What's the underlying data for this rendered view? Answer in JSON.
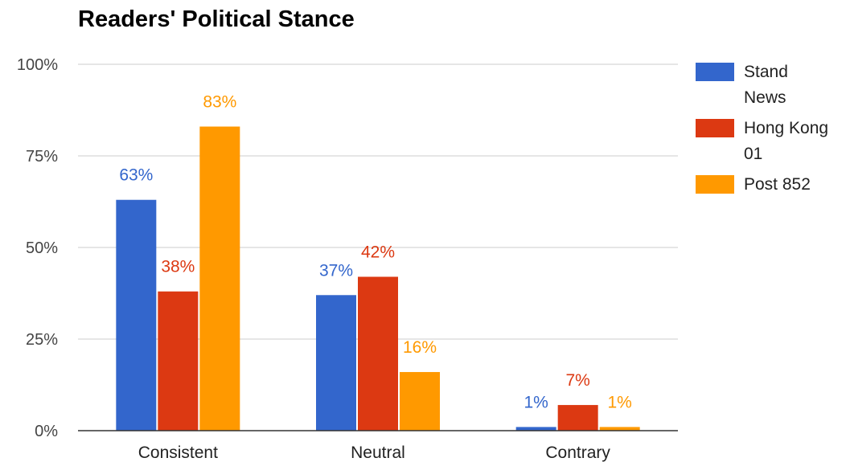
{
  "chart_data": {
    "type": "bar",
    "title": "Readers' Political Stance",
    "categories": [
      "Consistent",
      "Neutral",
      "Contrary"
    ],
    "series": [
      {
        "name": "Stand News",
        "values": [
          63,
          37,
          1
        ],
        "labels": [
          "63%",
          "37%",
          "1%"
        ],
        "color": "#3366cc"
      },
      {
        "name": "Hong Kong 01",
        "values": [
          38,
          42,
          7
        ],
        "labels": [
          "38%",
          "42%",
          "7%"
        ],
        "color": "#dc3912"
      },
      {
        "name": "Post 852",
        "values": [
          83,
          16,
          1
        ],
        "labels": [
          "83%",
          "16%",
          "1%"
        ],
        "color": "#ff9900"
      }
    ],
    "y_ticks": [
      "0%",
      "25%",
      "50%",
      "75%",
      "100%"
    ],
    "y_tick_values": [
      0,
      25,
      50,
      75,
      100
    ],
    "ylim": [
      0,
      100
    ],
    "grid": true,
    "legend_position": "right"
  }
}
